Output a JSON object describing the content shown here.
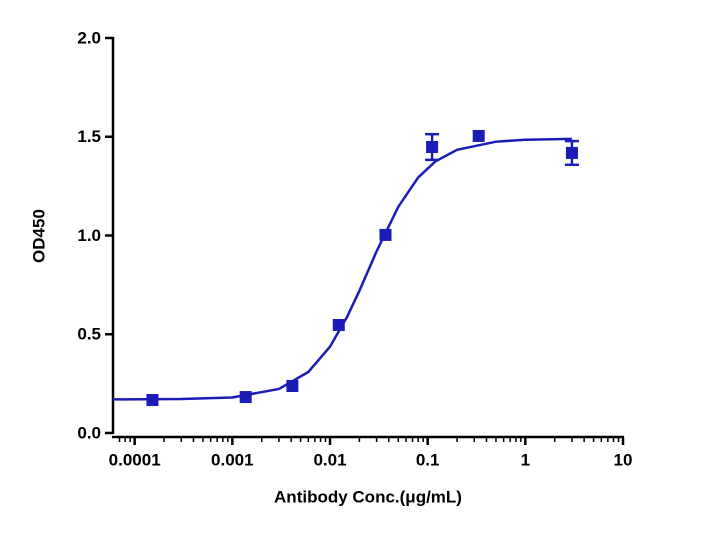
{
  "chart_data": {
    "type": "scatter",
    "x_label": "Antibody Conc.(μg/mL)",
    "y_label": "OD450",
    "x_scale": "log",
    "color": "#1c1cb8",
    "x": [
      0.000152,
      0.00137,
      0.00412,
      0.0123,
      0.037,
      0.111,
      0.333,
      3
    ],
    "values": [
      0.167,
      0.182,
      0.238,
      0.547,
      1.003,
      1.448,
      1.504,
      1.418
    ],
    "errors": [
      null,
      null,
      null,
      null,
      null,
      0.065,
      null,
      0.06
    ],
    "curve": {
      "x": [
        6e-05,
        0.0003,
        0.001,
        0.003,
        0.006,
        0.01,
        0.015,
        0.02,
        0.03,
        0.05,
        0.08,
        0.12,
        0.2,
        0.5,
        1,
        3
      ],
      "values": [
        0.17,
        0.172,
        0.18,
        0.223,
        0.309,
        0.437,
        0.589,
        0.72,
        0.92,
        1.145,
        1.294,
        1.375,
        1.434,
        1.475,
        1.485,
        1.489
      ]
    },
    "xlim": [
      6e-05,
      10
    ],
    "xticks": [
      0.0001,
      0.001,
      0.01,
      0.1,
      1,
      10
    ],
    "xminorticks": [
      7e-05,
      8e-05,
      9e-05,
      0.0002,
      0.0003,
      0.0004,
      0.0005,
      0.0006,
      0.0007,
      0.0008,
      0.0009,
      0.002,
      0.003,
      0.004,
      0.005,
      0.006,
      0.007,
      0.008,
      0.009,
      0.02,
      0.03,
      0.04,
      0.05,
      0.06,
      0.07,
      0.08,
      0.09,
      0.2,
      0.3,
      0.4,
      0.5,
      0.6,
      0.7,
      0.8,
      0.9,
      2,
      3,
      4,
      5,
      6,
      7,
      8,
      9
    ],
    "ylim": [
      0,
      2
    ],
    "yticks": [
      {
        "value": 0,
        "label": "0.0"
      },
      0.5,
      {
        "value": 1,
        "label": "1.0"
      },
      1.5,
      {
        "value": 2,
        "label": "2.0"
      }
    ]
  }
}
